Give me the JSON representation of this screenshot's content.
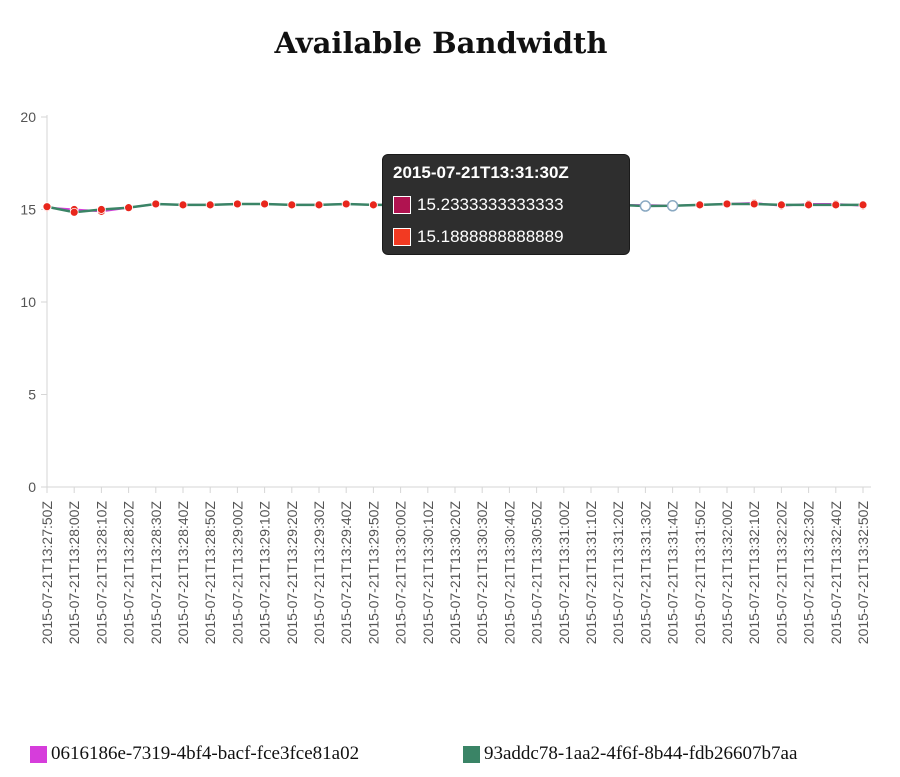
{
  "chart_data": {
    "type": "line",
    "title": "Available Bandwidth",
    "xlabel": "",
    "ylabel": "",
    "ylim": [
      0,
      20
    ],
    "yticks": [
      0,
      5,
      10,
      15,
      20
    ],
    "grid": false,
    "legend_position": "bottom",
    "categories": [
      "2015-07-21T13:27:50Z",
      "2015-07-21T13:28:00Z",
      "2015-07-21T13:28:10Z",
      "2015-07-21T13:28:20Z",
      "2015-07-21T13:28:30Z",
      "2015-07-21T13:28:40Z",
      "2015-07-21T13:28:50Z",
      "2015-07-21T13:29:00Z",
      "2015-07-21T13:29:10Z",
      "2015-07-21T13:29:20Z",
      "2015-07-21T13:29:30Z",
      "2015-07-21T13:29:40Z",
      "2015-07-21T13:29:50Z",
      "2015-07-21T13:30:00Z",
      "2015-07-21T13:30:10Z",
      "2015-07-21T13:30:20Z",
      "2015-07-21T13:30:30Z",
      "2015-07-21T13:30:40Z",
      "2015-07-21T13:30:50Z",
      "2015-07-21T13:31:00Z",
      "2015-07-21T13:31:10Z",
      "2015-07-21T13:31:20Z",
      "2015-07-21T13:31:30Z",
      "2015-07-21T13:31:40Z",
      "2015-07-21T13:31:50Z",
      "2015-07-21T13:32:00Z",
      "2015-07-21T13:32:10Z",
      "2015-07-21T13:32:20Z",
      "2015-07-21T13:32:30Z",
      "2015-07-21T13:32:40Z",
      "2015-07-21T13:32:50Z"
    ],
    "series": [
      {
        "name": "0616186e-7319-4bf4-bacf-fce3fce81a02",
        "color": "#d63ddb",
        "values": [
          15.1,
          15.0,
          14.9,
          15.1,
          15.3,
          15.25,
          15.25,
          15.3,
          15.3,
          15.25,
          15.25,
          15.3,
          15.25,
          15.25,
          15.25,
          15.25,
          15.25,
          15.25,
          15.25,
          15.25,
          15.25,
          15.25,
          15.2333333333333,
          15.2,
          15.25,
          15.3,
          15.35,
          15.2,
          15.3,
          15.3,
          15.2
        ]
      },
      {
        "name": "93addc78-1aa2-4f6f-8b44-fdb26607b7aa",
        "color": "#3a8466",
        "values": [
          15.15,
          14.85,
          15.0,
          15.1,
          15.3,
          15.25,
          15.25,
          15.3,
          15.3,
          15.25,
          15.25,
          15.3,
          15.25,
          15.25,
          15.25,
          15.25,
          15.25,
          15.25,
          15.25,
          15.25,
          15.25,
          15.25,
          15.1888888888889,
          15.2,
          15.25,
          15.3,
          15.3,
          15.25,
          15.25,
          15.25,
          15.25
        ]
      }
    ],
    "tooltip": {
      "title": "2015-07-21T13:31:30Z",
      "rows": [
        {
          "color": "#b01350",
          "value": "15.2333333333333"
        },
        {
          "color": "#f23a22",
          "value": "15.1888888888889"
        }
      ]
    }
  }
}
